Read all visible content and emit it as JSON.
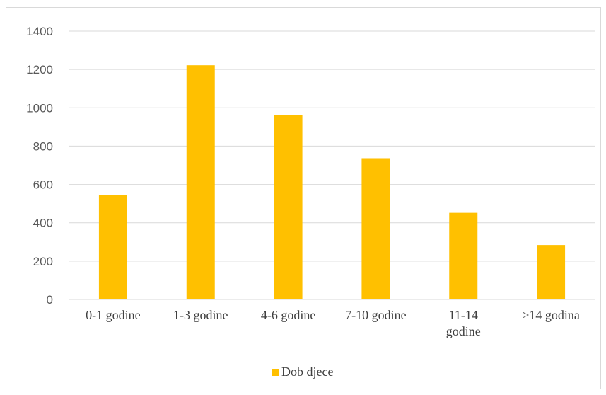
{
  "chart_data": {
    "type": "bar",
    "categories": [
      "0-1 godine",
      "1-3 godine",
      "4-6 godine",
      "7-10 godine",
      "11-14 godine",
      ">14 godina"
    ],
    "category_lines": [
      [
        "0-1 godine"
      ],
      [
        "1-3 godine"
      ],
      [
        "4-6 godine"
      ],
      [
        "7-10 godine"
      ],
      [
        "11-14",
        "godine"
      ],
      [
        ">14 godina"
      ]
    ],
    "series": [
      {
        "name": "Dob djece",
        "values": [
          545,
          1222,
          962,
          737,
          452,
          284
        ],
        "color": "#ffc000"
      }
    ],
    "ylim": [
      0,
      1400
    ],
    "yticks": [
      0,
      200,
      400,
      600,
      800,
      1000,
      1200,
      1400
    ],
    "grid": true,
    "legend_position": "bottom",
    "gridline_color": "#d9d9d9",
    "axis_color": "#d9d9d9"
  }
}
